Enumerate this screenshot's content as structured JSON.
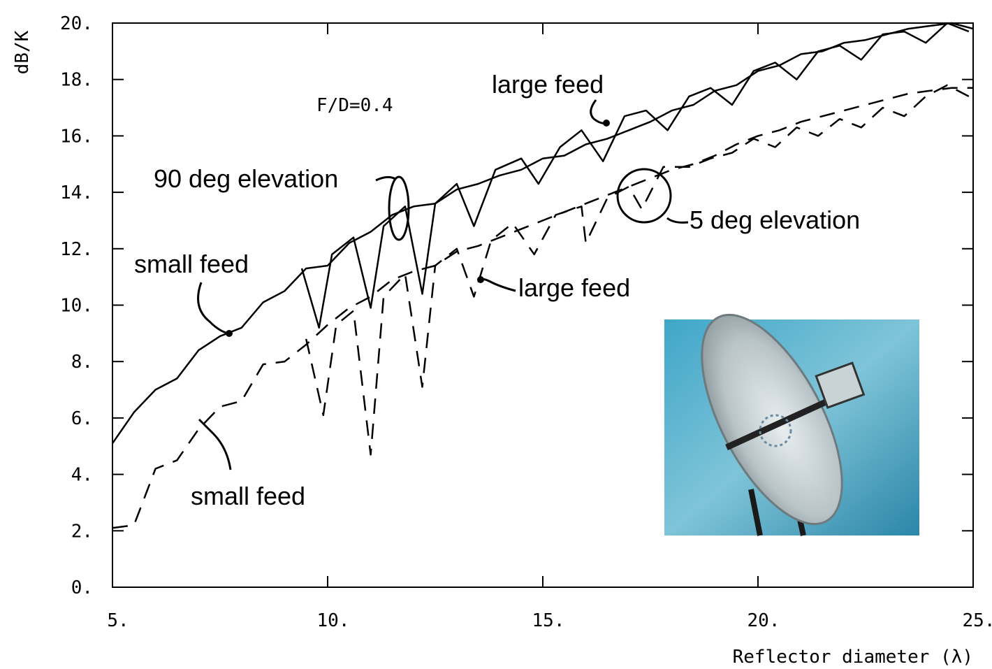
{
  "chart_data": {
    "type": "line",
    "x_label": "Reflector diameter (λ)",
    "y_label": "dB/K",
    "xlim": [
      5,
      25
    ],
    "ylim": [
      0,
      20
    ],
    "xticks": [
      {
        "value": 5,
        "label": "5."
      },
      {
        "value": 10,
        "label": "10."
      },
      {
        "value": 15,
        "label": "15."
      },
      {
        "value": 20,
        "label": "20."
      },
      {
        "value": 25,
        "label": "25."
      }
    ],
    "yticks": [
      {
        "value": 0,
        "label": "0."
      },
      {
        "value": 2,
        "label": "2."
      },
      {
        "value": 4,
        "label": "4."
      },
      {
        "value": 6,
        "label": "6."
      },
      {
        "value": 8,
        "label": "8."
      },
      {
        "value": 10,
        "label": "10."
      },
      {
        "value": 12,
        "label": "12."
      },
      {
        "value": 14,
        "label": "14."
      },
      {
        "value": 16,
        "label": "16."
      },
      {
        "value": 18,
        "label": "18."
      },
      {
        "value": 20,
        "label": "20."
      }
    ],
    "grid": false,
    "annotations": [
      "F/D=0.4",
      "90 deg elevation",
      "5 deg elevation"
    ],
    "series": [
      {
        "name": "small feed",
        "color": "#000000",
        "dashed": false,
        "x": [
          5,
          5.5,
          6,
          6.5,
          7,
          7.5,
          8,
          8.5,
          9,
          9.5,
          10,
          10.5,
          11,
          11.5,
          12,
          12.5,
          13,
          13.5,
          14,
          14.5,
          15,
          15.5,
          16,
          16.5,
          17,
          17.5,
          18,
          18.5,
          19,
          19.5,
          20,
          20.5,
          21,
          21.5,
          22,
          22.5,
          23,
          23.5,
          24,
          24.5,
          25
        ],
        "values": [
          5.1,
          6.2,
          7.0,
          7.4,
          8.4,
          8.9,
          9.2,
          10.1,
          10.5,
          11.3,
          11.4,
          12.2,
          12.6,
          13.2,
          13.5,
          13.6,
          14.1,
          14.3,
          14.6,
          14.8,
          15.2,
          15.3,
          15.7,
          15.9,
          16.2,
          16.5,
          16.9,
          17.1,
          17.6,
          17.8,
          18.3,
          18.5,
          18.9,
          19.0,
          19.3,
          19.4,
          19.6,
          19.8,
          19.9,
          20.0,
          19.8
        ]
      },
      {
        "name": "large feed",
        "color": "#000000",
        "dashed": false,
        "x": [
          9.4,
          9.8,
          10.1,
          10.6,
          11.0,
          11.3,
          11.8,
          12.2,
          12.5,
          13.0,
          13.4,
          13.9,
          14.5,
          14.9,
          15.4,
          15.9,
          16.4,
          16.9,
          17.4,
          17.9,
          18.4,
          18.9,
          19.4,
          19.9,
          20.4,
          20.9,
          21.4,
          21.9,
          22.4,
          22.9,
          23.4,
          23.9,
          24.4,
          24.9
        ],
        "values": [
          11.3,
          9.2,
          11.8,
          12.4,
          9.9,
          12.8,
          13.5,
          10.4,
          13.6,
          14.3,
          12.8,
          14.8,
          15.2,
          14.3,
          15.6,
          16.2,
          15.1,
          16.7,
          16.9,
          16.2,
          17.4,
          17.7,
          17.1,
          18.3,
          18.6,
          18.0,
          19.0,
          19.2,
          18.7,
          19.6,
          19.7,
          19.3,
          20.0,
          19.7
        ]
      },
      {
        "name": "small feed",
        "color": "#000000",
        "dashed": true,
        "x": [
          5,
          5.5,
          6,
          6.5,
          7,
          7.5,
          8,
          8.5,
          9,
          9.5,
          10,
          10.5,
          11,
          11.5,
          12,
          12.5,
          13,
          13.5,
          14,
          14.5,
          15,
          15.5,
          16,
          16.5,
          17,
          17.5,
          18,
          18.5,
          19,
          19.5,
          20,
          20.5,
          21,
          21.5,
          22,
          22.5,
          23,
          23.5,
          24,
          24.5,
          25
        ],
        "values": [
          2.1,
          2.2,
          4.2,
          4.5,
          5.6,
          6.4,
          6.6,
          7.9,
          8.0,
          8.6,
          9.3,
          9.9,
          10.3,
          10.9,
          11.2,
          11.4,
          11.9,
          12.1,
          12.4,
          12.7,
          13.0,
          13.3,
          13.6,
          13.9,
          14.2,
          14.5,
          14.8,
          15.0,
          15.3,
          15.7,
          16.0,
          16.2,
          16.5,
          16.7,
          16.9,
          17.1,
          17.3,
          17.5,
          17.6,
          17.7,
          17.7
        ]
      },
      {
        "name": "large feed",
        "color": "#000000",
        "dashed": true,
        "x": [
          9.5,
          9.9,
          10.2,
          10.6,
          11.0,
          11.3,
          11.8,
          12.2,
          12.5,
          13.0,
          13.4,
          13.8,
          14.3,
          14.8,
          15.3,
          15.9,
          16.0,
          16.5,
          17.0,
          17.3,
          17.8,
          18.4,
          18.9,
          19.4,
          19.9,
          20.4,
          20.9,
          21.4,
          21.9,
          22.4,
          22.9,
          23.4,
          23.9,
          24.4,
          24.9
        ],
        "values": [
          8.8,
          6.1,
          9.3,
          9.8,
          4.7,
          10.3,
          11.1,
          7.1,
          11.4,
          12.0,
          10.3,
          12.3,
          12.9,
          11.8,
          13.2,
          13.5,
          12.2,
          13.8,
          14.2,
          13.4,
          14.9,
          14.9,
          15.2,
          15.4,
          15.9,
          15.6,
          16.3,
          16.0,
          16.6,
          16.3,
          17.0,
          16.7,
          17.4,
          17.8,
          17.4
        ]
      }
    ]
  }
}
